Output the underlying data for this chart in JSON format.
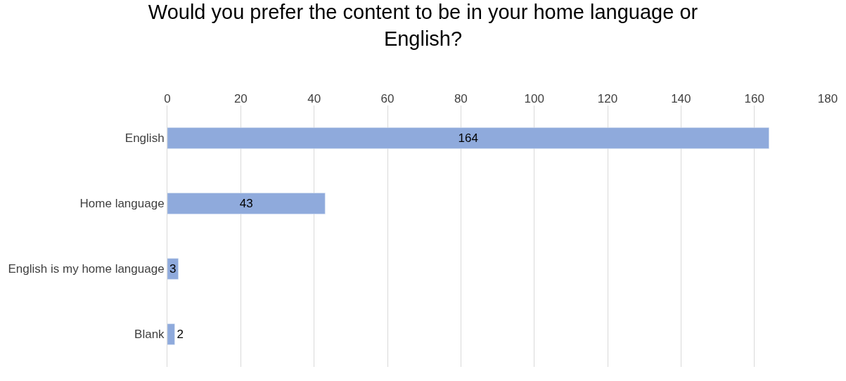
{
  "chart_data": {
    "type": "bar",
    "orientation": "horizontal",
    "title": "Would you prefer the content to be in your home language or English?",
    "categories": [
      "English",
      "Home language",
      "English is my home language",
      "Blank"
    ],
    "values": [
      164,
      43,
      3,
      2
    ],
    "color": "#8faadc",
    "xlim": [
      0,
      180
    ],
    "xticks": [
      0,
      20,
      40,
      60,
      80,
      100,
      120,
      140,
      160,
      180
    ],
    "grid": "x",
    "data_labels": true,
    "legend": false
  }
}
